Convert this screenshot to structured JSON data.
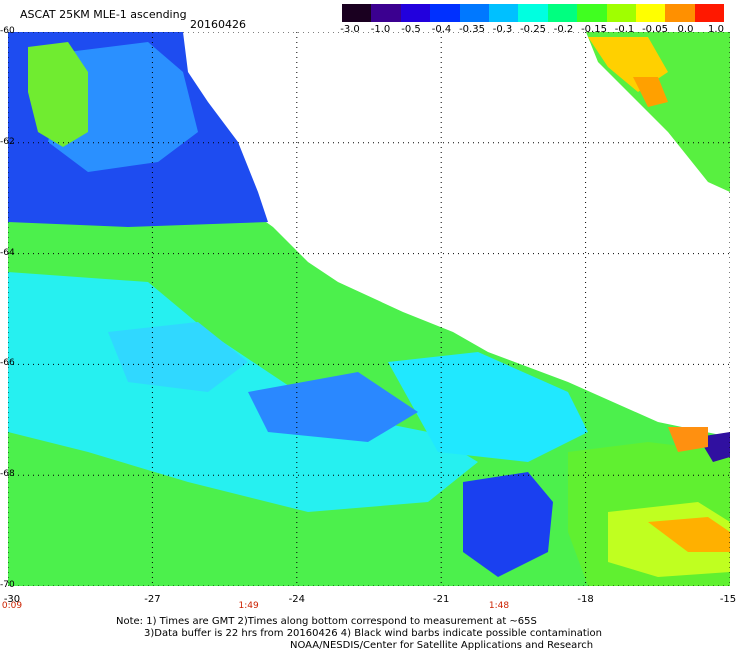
{
  "header": {
    "title": "ASCAT 25KM MLE-1 ascending",
    "date": "20160426"
  },
  "colorbar": {
    "labels": [
      "-3.0",
      "-1.0",
      "-0.5",
      "-0.4",
      "-0.35",
      "-0.3",
      "-0.25",
      "-0.2",
      "-0.15",
      "-0.1",
      "-0.05",
      "0.0",
      "1.0"
    ],
    "colors": [
      "#1a0020",
      "#3b0090",
      "#2200dd",
      "#0030ff",
      "#0078ff",
      "#00c0ff",
      "#00ffe0",
      "#00ff80",
      "#40ff20",
      "#a0ff00",
      "#ffff00",
      "#ff9000",
      "#ff1800"
    ]
  },
  "map": {
    "lat_labels": [
      "-60",
      "-62",
      "-64",
      "-66",
      "-68",
      "-70"
    ],
    "lon_labels": [
      "-30",
      "-27",
      "-24",
      "-21",
      "-18",
      "-15"
    ],
    "lat_range": [
      -70,
      -60
    ],
    "lon_range": [
      -30,
      -15
    ],
    "grid": true,
    "time_labels": [
      {
        "text": "0:09",
        "lon": -30
      },
      {
        "text": "1:49",
        "lon": -25
      },
      {
        "text": "1:48",
        "lon": -19.8
      }
    ]
  },
  "notes": {
    "line1": "Note: 1) Times are GMT 2)Times along bottom correspond to measurement at ~65S",
    "line2": "3)Data buffer is 22 hrs from 20160426 4) Black wind barbs indicate possible contamination",
    "line3": "NOAA/NESDIS/Center for Satellite Applications and Research"
  }
}
